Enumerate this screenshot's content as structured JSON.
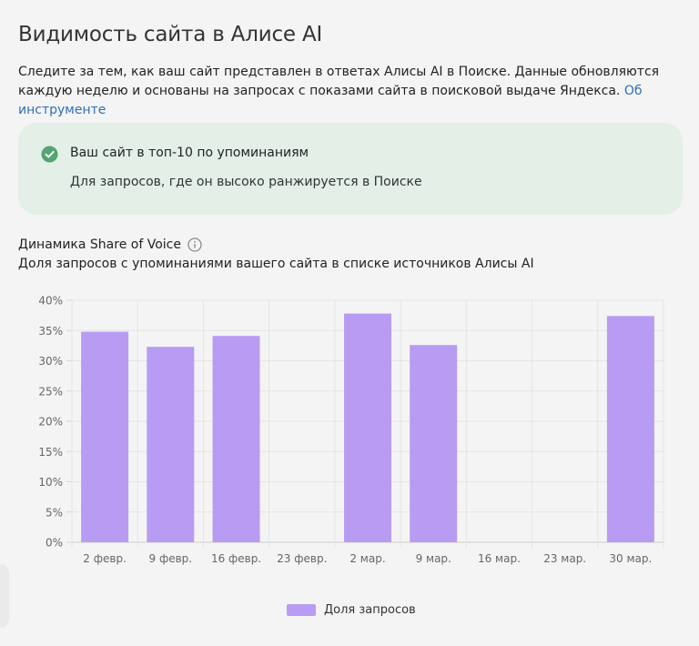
{
  "page": {
    "title": "Видимость сайта в Алисе AI",
    "description": "Следите за тем, как ваш сайт представлен в ответах Алисы AI в Поиске. Данные обновляются каждую неделю и основаны на запросах с показами сайта в поисковой выдаче Яндекса.",
    "about_link": "Об инструменте"
  },
  "status_card": {
    "title": "Ваш сайт в топ-10 по упоминаниям",
    "subtitle": "Для запросов, где он высоко ранжируется в Поиске",
    "icon": "check-circle-icon",
    "accent_color": "#55a471",
    "background_color": "#e3efe7"
  },
  "chart_section": {
    "title": "Динамика Share of Voice",
    "subtitle": "Доля запросов с упоминаниями вашего сайта в списке источников Алисы AI",
    "info_icon": "info-icon"
  },
  "chart_data": {
    "type": "bar",
    "categories": [
      "2 февр.",
      "9 февр.",
      "16 февр.",
      "23 февр.",
      "2 мар.",
      "9 мар.",
      "16 мар.",
      "23 мар.",
      "30 мар."
    ],
    "series": [
      {
        "name": "Доля запросов",
        "values": [
          34.8,
          32.3,
          34.1,
          null,
          37.8,
          32.6,
          null,
          null,
          37.4
        ],
        "color": "#b89cf3"
      }
    ],
    "yticks": [
      "0%",
      "5%",
      "10%",
      "15%",
      "20%",
      "25%",
      "30%",
      "35%",
      "40%"
    ],
    "ylim": [
      0,
      40
    ],
    "grid": true,
    "legend_position": "bottom"
  }
}
